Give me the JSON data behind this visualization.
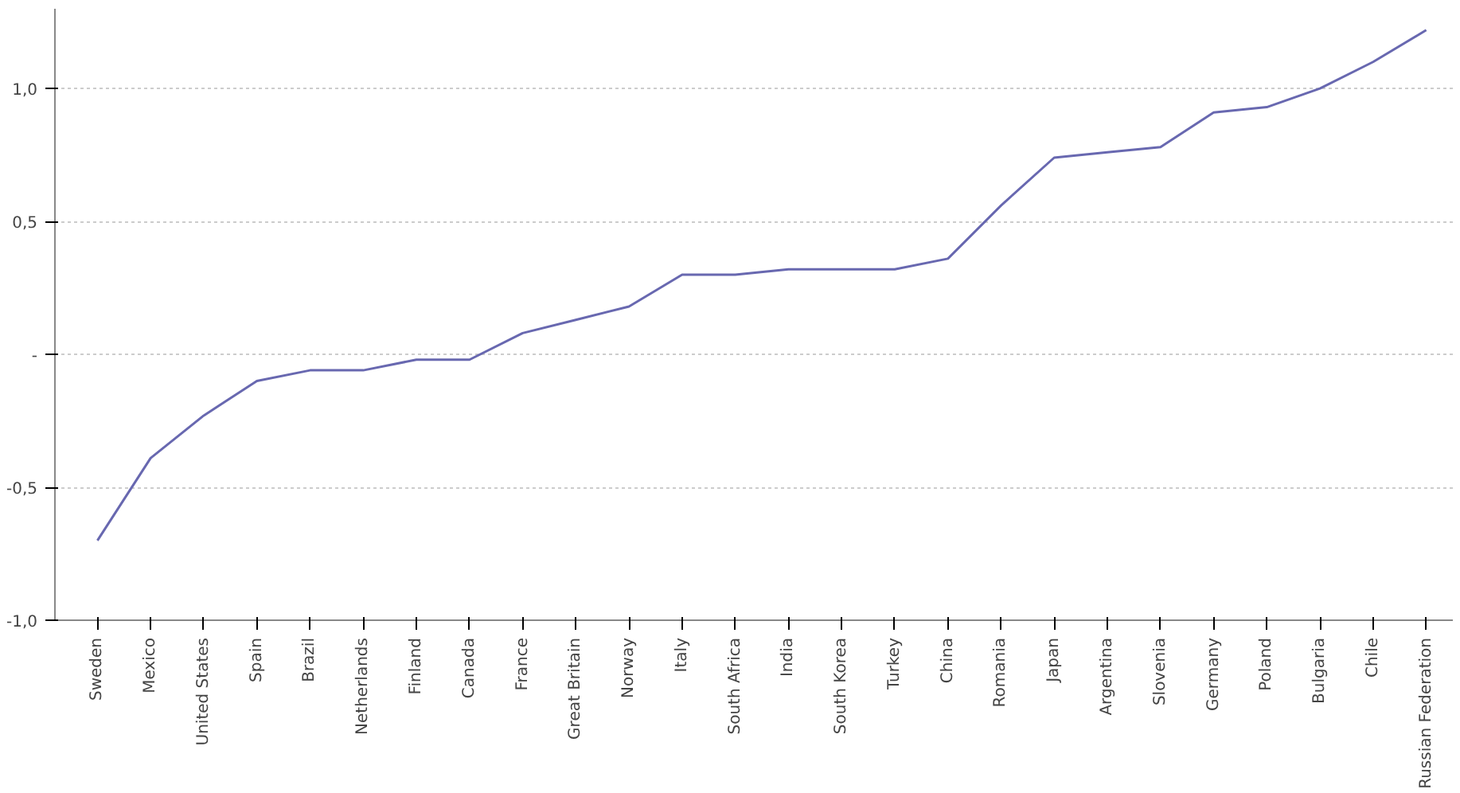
{
  "chart_data": {
    "type": "line",
    "categories": [
      "Sweden",
      "Mexico",
      "United States",
      "Spain",
      "Brazil",
      "Netherlands",
      "Finland",
      "Canada",
      "France",
      "Great Britain",
      "Norway",
      "Italy",
      "South Africa",
      "India",
      "South Korea",
      "Turkey",
      "China",
      "Romania",
      "Japan",
      "Argentina",
      "Slovenia",
      "Germany",
      "Poland",
      "Bulgaria",
      "Chile",
      "Russian Federation"
    ],
    "series": [
      {
        "color": "#6868b0",
        "values": [
          -0.7,
          -0.39,
          -0.23,
          -0.1,
          -0.06,
          -0.06,
          -0.02,
          -0.02,
          0.08,
          0.13,
          0.18,
          0.3,
          0.3,
          0.32,
          0.32,
          0.32,
          0.36,
          0.56,
          0.74,
          0.76,
          0.78,
          0.91,
          0.93,
          1.0,
          1.1,
          1.22
        ]
      }
    ],
    "ylim": [
      -1.0,
      1.3
    ],
    "yticks": [
      {
        "value": -1.0,
        "label": "-1,0"
      },
      {
        "value": -0.5,
        "label": "-0,5"
      },
      {
        "value": 0,
        "label": "-"
      },
      {
        "value": 0.5,
        "label": "0,5"
      },
      {
        "value": 1.0,
        "label": "1,0"
      }
    ],
    "grid": "y",
    "marker": "none",
    "line_style": "solid"
  }
}
